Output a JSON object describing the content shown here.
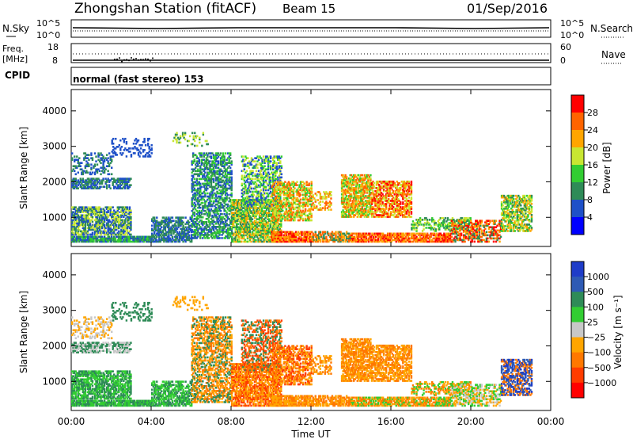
{
  "header": {
    "station": "Zhongshan Station (fitACF)",
    "beam": "Beam 15",
    "date": "01/Sep/2016"
  },
  "nsky_panel": {
    "left_label": "N.Sky",
    "left_ticks": [
      "10^5",
      "10^0"
    ],
    "right_ticks": [
      "10^5",
      "10^0"
    ],
    "right_label": "N.Search"
  },
  "freq_panel": {
    "left_label_1": "Freq.",
    "left_label_2": "[MHz]",
    "left_ticks": [
      "18",
      "8"
    ],
    "right_ticks": [
      "60",
      "0"
    ],
    "right_label": "Nave"
  },
  "cpid_panel": {
    "label": "CPID",
    "value": "normal (fast stereo) 153"
  },
  "chart_data": [
    {
      "type": "heatmap",
      "name": "power",
      "ylabel": "Slant Range [km]",
      "ylim": [
        180,
        4600
      ],
      "yticks": [
        "1000",
        "2000",
        "3000",
        "4000"
      ],
      "xlim": [
        0,
        24
      ],
      "colorbar": {
        "label": "Power [dB]",
        "ticks": [
          "4",
          "8",
          "12",
          "16",
          "20",
          "24",
          "28"
        ],
        "range": [
          0,
          32
        ],
        "colors": [
          "#0000ff",
          "#1e50c8",
          "#2e8b57",
          "#32cd32",
          "#c8e632",
          "#ffa500",
          "#ff6400",
          "#ff0000"
        ]
      }
    },
    {
      "type": "heatmap",
      "name": "velocity",
      "ylabel": "Slant Range [km]",
      "ylim": [
        180,
        4600
      ],
      "yticks": [
        "1000",
        "2000",
        "3000",
        "4000"
      ],
      "xlim": [
        0,
        24
      ],
      "colorbar": {
        "label": "Velocity [m s⁻¹]",
        "ticks": [
          "1000",
          "500",
          "100",
          "25",
          "−25",
          "−100",
          "−500",
          "−1000"
        ],
        "colors": [
          "#1e3cc8",
          "#2e5ab4",
          "#2e8b57",
          "#32cd32",
          "#c8c8c8",
          "#ffa500",
          "#ff7800",
          "#ff3c00",
          "#ff0000"
        ]
      }
    }
  ],
  "x_axis": {
    "ticks": [
      "00:00",
      "04:00",
      "08:00",
      "12:00",
      "16:00",
      "20:00",
      "00:00"
    ],
    "label": "Time UT"
  },
  "colors": {
    "power_scale": [
      "#0000ff",
      "#1e50c8",
      "#2e8b57",
      "#32cd32",
      "#c8e632",
      "#ffa500",
      "#ff6400",
      "#ff0000"
    ],
    "velocity_scale": [
      "#1e3cc8",
      "#2e5ab4",
      "#2e8b57",
      "#32cd32",
      "#c8c8c8",
      "#ffa500",
      "#ff7800",
      "#ff3c00",
      "#ff0000"
    ]
  }
}
